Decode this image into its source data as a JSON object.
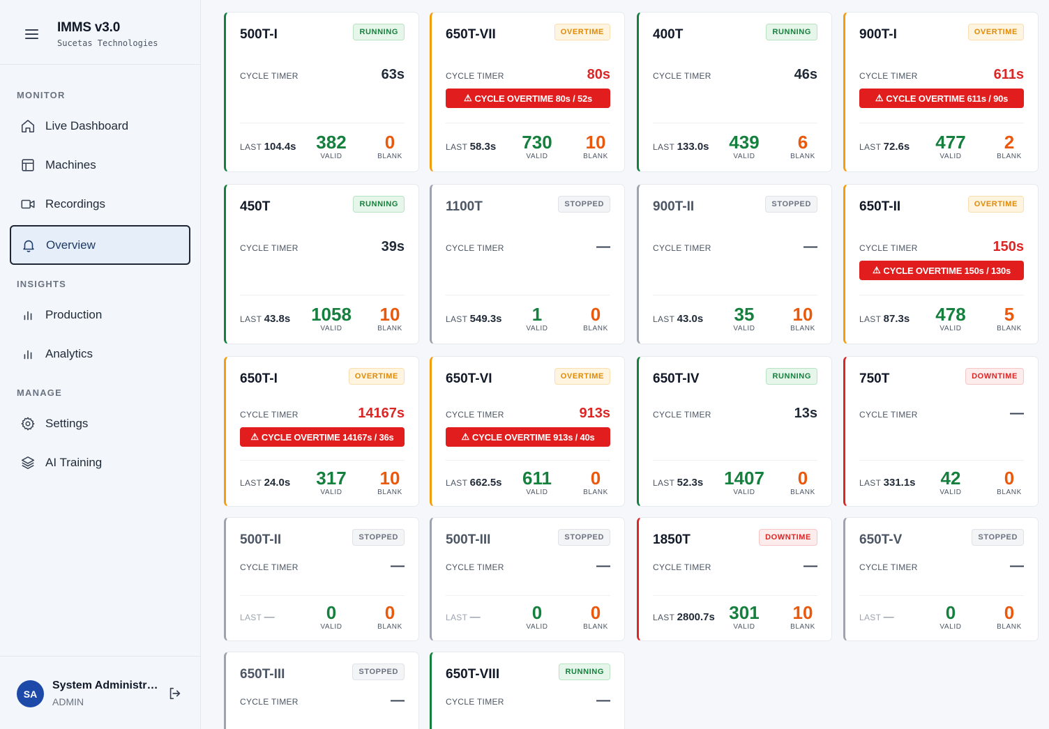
{
  "app": {
    "title": "IMMS v3.0",
    "subtitle": "Sucetas Technologies"
  },
  "sidebar": {
    "sections": [
      {
        "label": "MONITOR"
      },
      {
        "label": "INSIGHTS"
      },
      {
        "label": "MANAGE"
      }
    ],
    "items": [
      {
        "label": "Live Dashboard",
        "icon": "home-icon"
      },
      {
        "label": "Machines",
        "icon": "grid-icon"
      },
      {
        "label": "Recordings",
        "icon": "video-icon"
      },
      {
        "label": "Overview",
        "icon": "bell-icon",
        "active": true
      },
      {
        "label": "Production",
        "icon": "bar-chart-icon"
      },
      {
        "label": "Analytics",
        "icon": "bar-chart-icon"
      },
      {
        "label": "Settings",
        "icon": "gear-icon"
      },
      {
        "label": "AI Training",
        "icon": "layers-icon"
      }
    ]
  },
  "user": {
    "initials": "SA",
    "name": "System Administrator",
    "role": "ADMIN"
  },
  "labels": {
    "cycle_timer": "CYCLE TIMER",
    "last": "LAST",
    "valid": "VALID",
    "blank": "BLANK"
  },
  "colors": {
    "running": "#15803d",
    "overtime": "#f59e0b",
    "stopped": "#9ca3af",
    "downtime": "#dc2626",
    "active_nav": "#e5eef9"
  },
  "machines": [
    {
      "name": "500T-I",
      "status": "RUNNING",
      "cycle": "63s",
      "alert": "",
      "last": "104.4s",
      "valid": "382",
      "blank": "0"
    },
    {
      "name": "650T-VII",
      "status": "OVERTIME",
      "cycle": "80s",
      "alert": "CYCLE OVERTIME 80s / 52s",
      "last": "58.3s",
      "valid": "730",
      "blank": "10"
    },
    {
      "name": "400T",
      "status": "RUNNING",
      "cycle": "46s",
      "alert": "",
      "last": "133.0s",
      "valid": "439",
      "blank": "6"
    },
    {
      "name": "900T-I",
      "status": "OVERTIME",
      "cycle": "611s",
      "alert": "CYCLE OVERTIME 611s / 90s",
      "last": "72.6s",
      "valid": "477",
      "blank": "2"
    },
    {
      "name": "450T",
      "status": "RUNNING",
      "cycle": "39s",
      "alert": "",
      "last": "43.8s",
      "valid": "1058",
      "blank": "10"
    },
    {
      "name": "1100T",
      "status": "STOPPED",
      "cycle": "—",
      "alert": "",
      "last": "549.3s",
      "valid": "1",
      "blank": "0"
    },
    {
      "name": "900T-II",
      "status": "STOPPED",
      "cycle": "—",
      "alert": "",
      "last": "43.0s",
      "valid": "35",
      "blank": "10"
    },
    {
      "name": "650T-II",
      "status": "OVERTIME",
      "cycle": "150s",
      "alert": "CYCLE OVERTIME 150s / 130s",
      "last": "87.3s",
      "valid": "478",
      "blank": "5"
    },
    {
      "name": "650T-I",
      "status": "OVERTIME",
      "cycle": "14167s",
      "alert": "CYCLE OVERTIME 14167s / 36s",
      "last": "24.0s",
      "valid": "317",
      "blank": "10"
    },
    {
      "name": "650T-VI",
      "status": "OVERTIME",
      "cycle": "913s",
      "alert": "CYCLE OVERTIME 913s / 40s",
      "last": "662.5s",
      "valid": "611",
      "blank": "0"
    },
    {
      "name": "650T-IV",
      "status": "RUNNING",
      "cycle": "13s",
      "alert": "",
      "last": "52.3s",
      "valid": "1407",
      "blank": "0"
    },
    {
      "name": "750T",
      "status": "DOWNTIME",
      "cycle": "—",
      "alert": "",
      "last": "331.1s",
      "valid": "42",
      "blank": "0"
    },
    {
      "name": "500T-II",
      "status": "STOPPED",
      "cycle": "—",
      "alert": "",
      "last": "—",
      "valid": "0",
      "blank": "0"
    },
    {
      "name": "500T-III",
      "status": "STOPPED",
      "cycle": "—",
      "alert": "",
      "last": "—",
      "valid": "0",
      "blank": "0"
    },
    {
      "name": "1850T",
      "status": "DOWNTIME",
      "cycle": "—",
      "alert": "",
      "last": "2800.7s",
      "valid": "301",
      "blank": "10"
    },
    {
      "name": "650T-V",
      "status": "STOPPED",
      "cycle": "—",
      "alert": "",
      "last": "—",
      "valid": "0",
      "blank": "0"
    },
    {
      "name": "650T-III",
      "status": "STOPPED",
      "cycle": "—",
      "alert": "",
      "last": "",
      "valid": "",
      "blank": ""
    },
    {
      "name": "650T-VIII",
      "status": "RUNNING",
      "cycle": "—",
      "alert": "",
      "last": "",
      "valid": "",
      "blank": ""
    }
  ]
}
